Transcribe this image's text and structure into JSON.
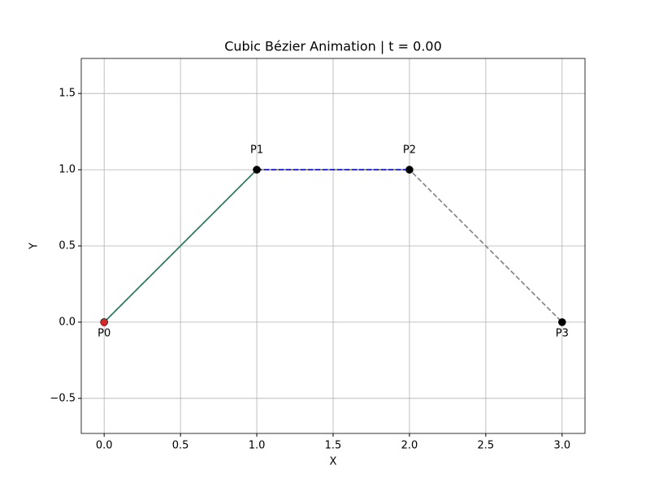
{
  "chart_data": {
    "type": "line",
    "title": "Cubic Bézier Animation | t = 0.00",
    "xlabel": "X",
    "ylabel": "Y",
    "xlim": [
      -0.15,
      3.15
    ],
    "ylim": [
      -0.73,
      1.73
    ],
    "xticks": [
      {
        "value": 0,
        "label": "0.0"
      },
      {
        "value": 0.5,
        "label": "0.5"
      },
      {
        "value": 1,
        "label": "1.0"
      },
      {
        "value": 1.5,
        "label": "1.5"
      },
      {
        "value": 2,
        "label": "2.0"
      },
      {
        "value": 2.5,
        "label": "2.5"
      },
      {
        "value": 3,
        "label": "3.0"
      }
    ],
    "yticks": [
      {
        "value": -0.5,
        "label": "−0.5"
      },
      {
        "value": 0,
        "label": "0.0"
      },
      {
        "value": 0.5,
        "label": "0.5"
      },
      {
        "value": 1,
        "label": "1.0"
      },
      {
        "value": 1.5,
        "label": "1.5"
      }
    ],
    "grid": true,
    "series": [
      {
        "color": "#808080",
        "dashed": true,
        "x": [
          0,
          1,
          2,
          3
        ],
        "values": [
          0,
          1,
          1,
          0
        ]
      },
      {
        "color": "#1f7a5c",
        "dashed": false,
        "x": [
          0,
          1
        ],
        "values": [
          0,
          1
        ]
      },
      {
        "color": "#0000ff",
        "dashed": true,
        "x": [
          1,
          2
        ],
        "values": [
          1,
          1
        ]
      }
    ],
    "points": {
      "x": [
        0,
        1,
        2,
        3
      ],
      "values": [
        0,
        1,
        1,
        0
      ],
      "labels": [
        "P0",
        "P1",
        "P2",
        "P3"
      ],
      "colors": [
        "#d62728",
        "#000000",
        "#000000",
        "#000000"
      ],
      "label_side": [
        "below",
        "above",
        "above",
        "below"
      ]
    }
  }
}
